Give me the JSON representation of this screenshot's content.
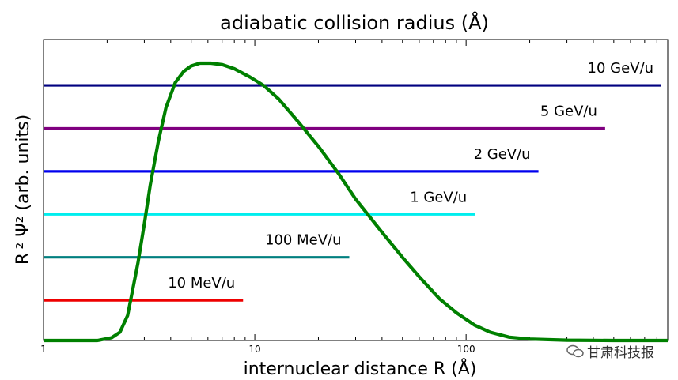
{
  "chart_data": {
    "type": "line",
    "title": "adiabatic collision radius (Å)",
    "xlabel": "internuclear distance  R (Å)",
    "ylabel": "R ² Ψ² (arb. units)",
    "xscale": "log",
    "xlim": [
      1,
      900
    ],
    "ylim": [
      0,
      1
    ],
    "x_tick_labels": [
      "1",
      "10",
      "100"
    ],
    "x_ticks": [
      1,
      10,
      100
    ],
    "grid": false,
    "curve": {
      "color": "#008000",
      "x": [
        1,
        1.8,
        2.1,
        2.3,
        2.5,
        2.8,
        3.0,
        3.2,
        3.5,
        3.8,
        4.2,
        4.6,
        5.0,
        5.5,
        6.2,
        7.0,
        8.0,
        9.5,
        11,
        13,
        16,
        20,
        25,
        30,
        40,
        50,
        60,
        75,
        90,
        110,
        130,
        160,
        200,
        300,
        500,
        900
      ],
      "y": [
        0.0,
        0.0,
        0.01,
        0.03,
        0.09,
        0.28,
        0.42,
        0.56,
        0.72,
        0.84,
        0.93,
        0.97,
        0.99,
        1.0,
        1.0,
        0.995,
        0.98,
        0.95,
        0.92,
        0.87,
        0.79,
        0.7,
        0.6,
        0.51,
        0.39,
        0.3,
        0.23,
        0.15,
        0.1,
        0.055,
        0.03,
        0.012,
        0.005,
        0.001,
        0.0,
        0.0
      ]
    },
    "series": [
      {
        "name": "10 GeV/u",
        "color": "#000080",
        "y": 0.92,
        "x_start": 1,
        "x_end": 840
      },
      {
        "name": "5 GeV/u",
        "color": "#800080",
        "y": 0.765,
        "x_start": 1,
        "x_end": 455
      },
      {
        "name": "2 GeV/u",
        "color": "#0000ee",
        "y": 0.61,
        "x_start": 1,
        "x_end": 220
      },
      {
        "name": "1 GeV/u",
        "color": "#00eeee",
        "y": 0.455,
        "x_start": 1,
        "x_end": 110
      },
      {
        "name": "100 MeV/u",
        "color": "#007f7f",
        "y": 0.3,
        "x_start": 1,
        "x_end": 28
      },
      {
        "name": "10 MeV/u",
        "color": "#ee0000",
        "y": 0.145,
        "x_start": 1,
        "x_end": 8.8
      }
    ]
  },
  "watermark": {
    "text": "甘肃科技报",
    "icon": "wechat-icon"
  }
}
